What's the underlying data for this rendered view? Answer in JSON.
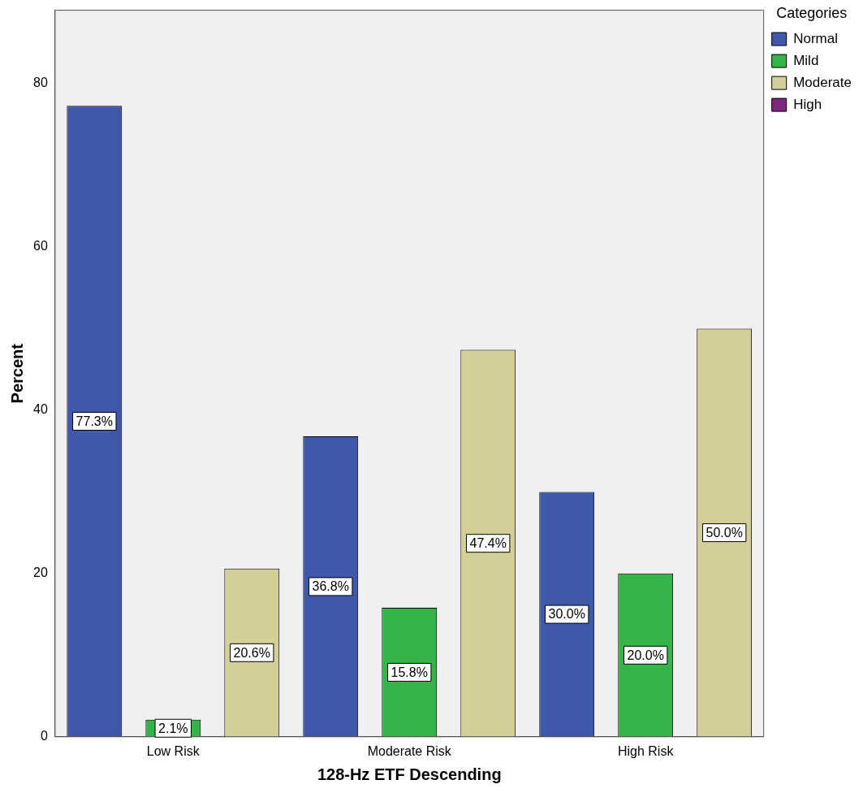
{
  "chart_data": {
    "type": "bar",
    "xlabel": "128-Hz ETF Descending",
    "ylabel": "Percent",
    "legend_title": "Categories",
    "legend": "top right",
    "grid": false,
    "categories": [
      "Low Risk",
      "Moderate Risk",
      "High Risk"
    ],
    "ylim": [
      0,
      89
    ],
    "yticks": [
      0,
      20,
      40,
      60,
      80
    ],
    "series": [
      {
        "name": "Normal",
        "color": "#3f58aa",
        "values": [
          77.3,
          36.8,
          30.0
        ],
        "value_labels": [
          "77.3%",
          "36.8%",
          "30.0%"
        ]
      },
      {
        "name": "Mild",
        "color": "#35b44a",
        "values": [
          2.1,
          15.8,
          20.0
        ],
        "value_labels": [
          "2.1%",
          "15.8%",
          "20.0%"
        ]
      },
      {
        "name": "Moderate",
        "color": "#d4cf98",
        "values": [
          20.6,
          47.4,
          50.0
        ],
        "value_labels": [
          "20.6%",
          "47.4%",
          "50.0%"
        ]
      },
      {
        "name": "High",
        "color": "#7f2680",
        "values": [
          null,
          null,
          null
        ]
      }
    ]
  }
}
